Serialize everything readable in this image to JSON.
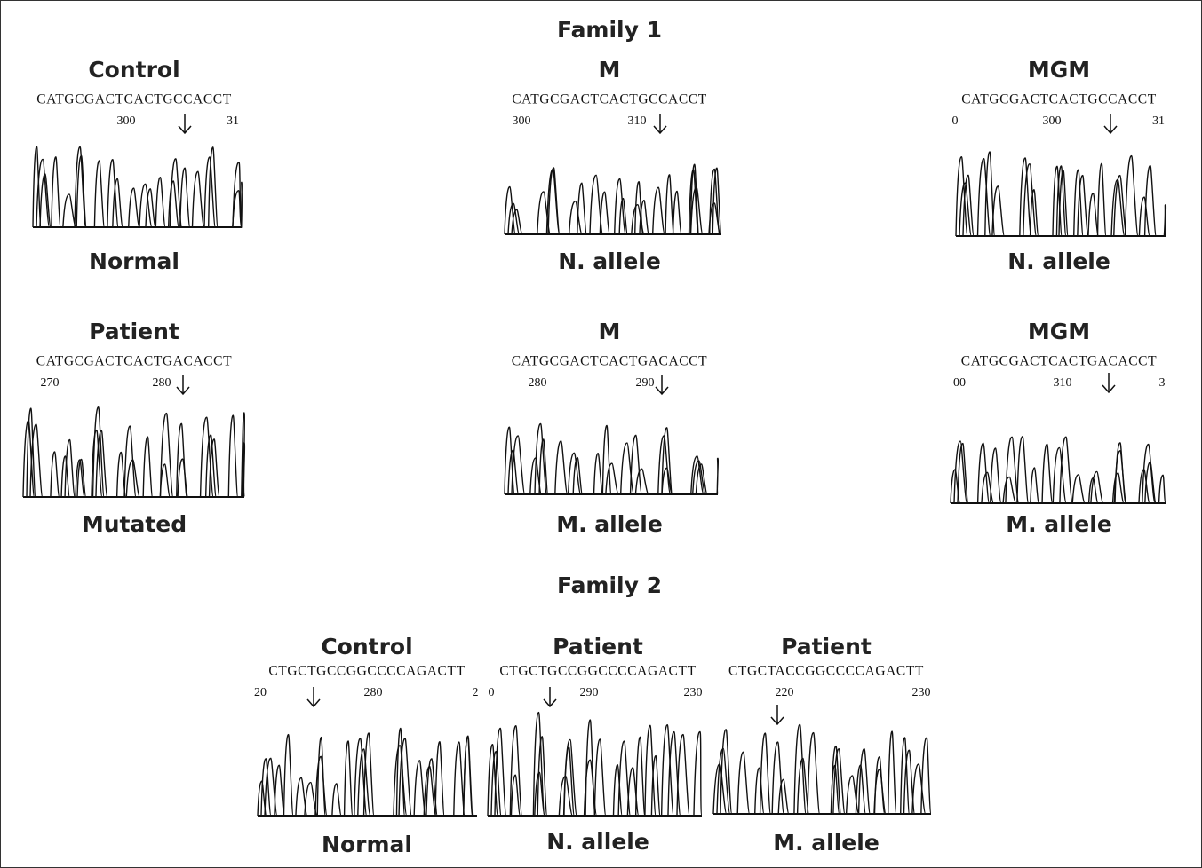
{
  "family1": {
    "title": "Family 1",
    "panels": [
      {
        "title": "Control",
        "sequence": "CATGCGACTCACTGCCACCT",
        "positions": [
          "300",
          "31"
        ],
        "caption": "Normal"
      },
      {
        "title": "M",
        "sequence": "CATGCGACTCACTGCCACCT",
        "positions": [
          "300",
          "310"
        ],
        "caption": "N. allele"
      },
      {
        "title": "MGM",
        "sequence": "CATGCGACTCACTGCCACCT",
        "positions": [
          "0",
          "300",
          "31"
        ],
        "caption": "N. allele"
      },
      {
        "title": "Patient",
        "sequence": "CATGCGACTCACTGACACCT",
        "positions": [
          "270",
          "280"
        ],
        "caption": "Mutated"
      },
      {
        "title": "M",
        "sequence": "CATGCGACTCACTGACACCT",
        "positions": [
          "280",
          "290"
        ],
        "caption": "M. allele"
      },
      {
        "title": "MGM",
        "sequence": "CATGCGACTCACTGACACCT",
        "positions": [
          "00",
          "310",
          "3"
        ],
        "caption": "M. allele"
      }
    ]
  },
  "family2": {
    "title": "Family 2",
    "panels": [
      {
        "title": "Control",
        "sequence": "CTGCTGCCGGCCCCAGACTT",
        "positions": [
          "20",
          "280",
          "2"
        ],
        "caption": "Normal"
      },
      {
        "title": "Patient",
        "sequence": "CTGCTGCCGGCCCCAGACTT",
        "positions": [
          "0",
          "290",
          "230"
        ],
        "caption": "N. allele"
      },
      {
        "title": "Patient",
        "sequence": "CTGCTACCGGCCCCAGACTT",
        "positions": [
          "220",
          "230"
        ],
        "caption": "M. allele"
      }
    ]
  }
}
